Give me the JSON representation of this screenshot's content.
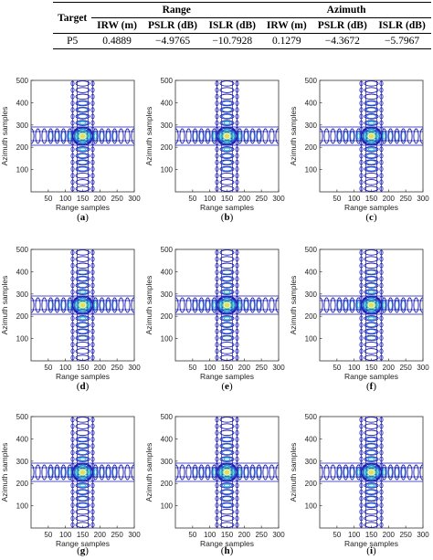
{
  "table": {
    "head": {
      "target": "Target",
      "range_group": "Range",
      "azimuth_group": "Azimuth",
      "cols": [
        "IRW (m)",
        "PSLR (dB)",
        "ISLR (dB)",
        "IRW (m)",
        "PSLR (dB)",
        "ISLR (dB)"
      ]
    },
    "rows": [
      {
        "target": "P5",
        "values": [
          "0.4889",
          "−4.9765",
          "−10.7928",
          "0.1279",
          "−4.3672",
          "−5.7967"
        ]
      }
    ]
  },
  "plots": {
    "xlabel": "Range samples",
    "ylabel": "Azimuth samples",
    "xticks": [
      50,
      100,
      150,
      200,
      250,
      300
    ],
    "yticks": [
      100,
      200,
      300,
      400,
      500
    ],
    "xlim": [
      0,
      300
    ],
    "ylim": [
      0,
      500
    ],
    "center": [
      150,
      250
    ],
    "contour_colors": [
      "#1a1ab0",
      "#2f6fd6",
      "#29b8c9",
      "#5fd08a",
      "#e0e060"
    ],
    "panels": [
      {
        "caption": "(a)",
        "letter": "a"
      },
      {
        "caption": "(b)",
        "letter": "b"
      },
      {
        "caption": "(c)",
        "letter": "c"
      },
      {
        "caption": "(d)",
        "letter": "d"
      },
      {
        "caption": "(e)",
        "letter": "e"
      },
      {
        "caption": "(f)",
        "letter": "f"
      },
      {
        "caption": "(g)",
        "letter": "g"
      },
      {
        "caption": "(h)",
        "letter": "h"
      },
      {
        "caption": "(i)",
        "letter": "i"
      }
    ]
  }
}
